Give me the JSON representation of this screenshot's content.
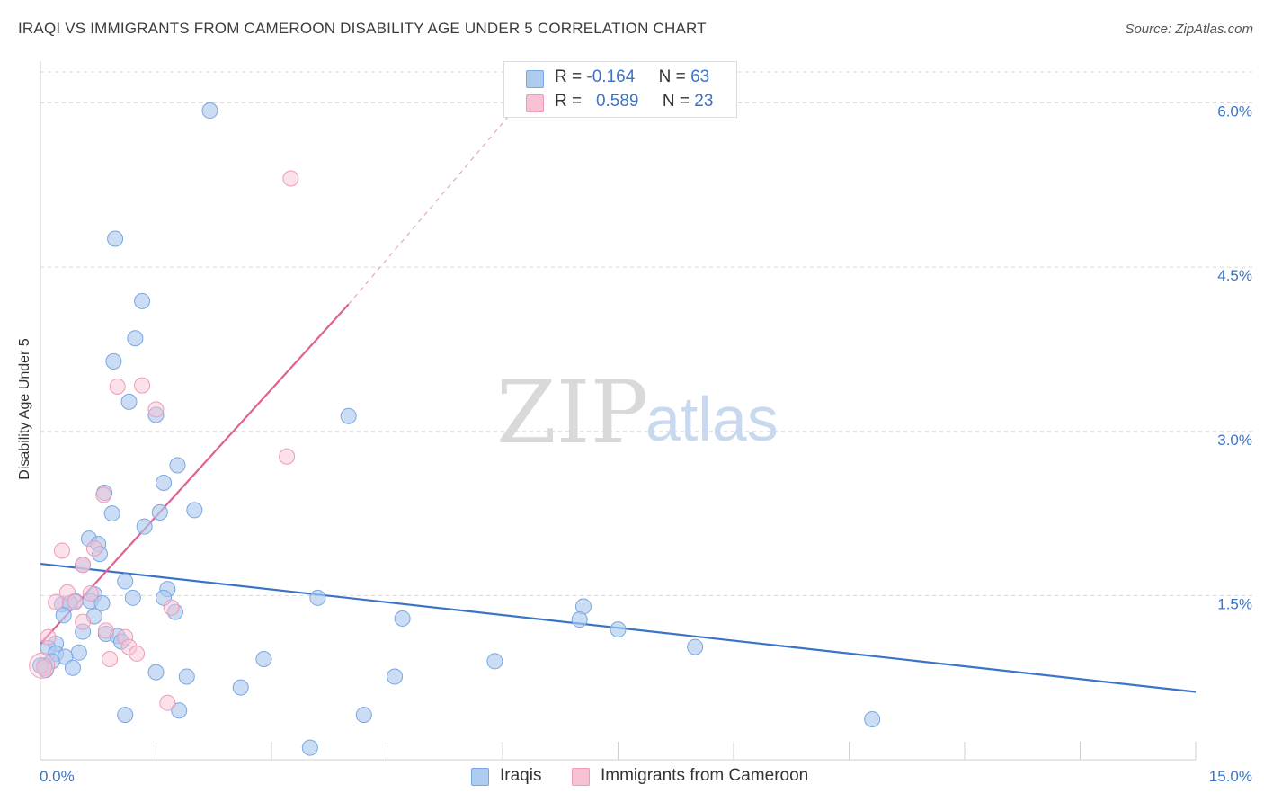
{
  "title": "IRAQI VS IMMIGRANTS FROM CAMEROON DISABILITY AGE UNDER 5 CORRELATION CHART",
  "source": "Source: ZipAtlas.com",
  "watermark": {
    "zip": "ZIP",
    "atlas": "atlas"
  },
  "colors": {
    "blue": "#3b74c6",
    "blue_fill": "#aecbf0",
    "blue_stroke": "#7aa6e0",
    "pink": "#e0608f",
    "pink_fill": "#f7c3d4",
    "pink_stroke": "#ef9ab8",
    "grid": "#d8d8d8"
  },
  "legend": {
    "rows": [
      {
        "r_label": "R =",
        "r_value": "-0.164",
        "n_label": "N =",
        "n_value": "63"
      },
      {
        "r_label": "R =",
        "r_value": "0.589",
        "n_label": "N =",
        "n_value": "23"
      }
    ]
  },
  "bottom_legend": [
    "Iraqis",
    "Immigrants from Cameroon"
  ],
  "chart_data": {
    "type": "scatter",
    "title": "IRAQI VS IMMIGRANTS FROM CAMEROON DISABILITY AGE UNDER 5 CORRELATION CHART",
    "xlabel": "",
    "ylabel": "Disability Age Under 5",
    "xlim": [
      0,
      15
    ],
    "ylim": [
      0,
      6.3
    ],
    "x_tick_labels": [
      "0.0%",
      "15.0%"
    ],
    "y_ticks": [
      1.5,
      3.0,
      4.5,
      6.0
    ],
    "y_tick_labels": [
      "1.5%",
      "3.0%",
      "4.5%",
      "6.0%"
    ],
    "series": [
      {
        "name": "Iraqis",
        "points": [
          [
            2.2,
            5.93
          ],
          [
            0.97,
            4.76
          ],
          [
            1.32,
            4.19
          ],
          [
            1.23,
            3.85
          ],
          [
            0.95,
            3.64
          ],
          [
            1.15,
            3.27
          ],
          [
            1.5,
            3.15
          ],
          [
            4.0,
            3.14
          ],
          [
            1.78,
            2.69
          ],
          [
            1.6,
            2.53
          ],
          [
            0.83,
            2.44
          ],
          [
            0.93,
            2.25
          ],
          [
            2.0,
            2.28
          ],
          [
            1.55,
            2.26
          ],
          [
            1.35,
            2.13
          ],
          [
            0.63,
            2.02
          ],
          [
            0.75,
            1.97
          ],
          [
            0.77,
            1.88
          ],
          [
            0.55,
            1.78
          ],
          [
            1.1,
            1.63
          ],
          [
            1.65,
            1.56
          ],
          [
            0.7,
            1.51
          ],
          [
            0.65,
            1.45
          ],
          [
            0.45,
            1.45
          ],
          [
            0.8,
            1.43
          ],
          [
            0.28,
            1.42
          ],
          [
            0.38,
            1.43
          ],
          [
            1.2,
            1.48
          ],
          [
            1.6,
            1.48
          ],
          [
            3.6,
            1.48
          ],
          [
            1.75,
            1.35
          ],
          [
            0.3,
            1.32
          ],
          [
            0.7,
            1.31
          ],
          [
            0.55,
            1.17
          ],
          [
            7.05,
            1.4
          ],
          [
            4.7,
            1.29
          ],
          [
            7.0,
            1.28
          ],
          [
            7.5,
            1.19
          ],
          [
            0.85,
            1.15
          ],
          [
            1.0,
            1.13
          ],
          [
            1.05,
            1.08
          ],
          [
            0.2,
            1.06
          ],
          [
            0.1,
            1.02
          ],
          [
            0.2,
            0.97
          ],
          [
            0.5,
            0.98
          ],
          [
            0.32,
            0.94
          ],
          [
            0.15,
            0.9
          ],
          [
            0.05,
            0.86
          ],
          [
            0.07,
            0.82
          ],
          [
            8.5,
            1.03
          ],
          [
            0.42,
            0.84
          ],
          [
            2.9,
            0.92
          ],
          [
            5.9,
            0.9
          ],
          [
            1.5,
            0.8
          ],
          [
            1.9,
            0.76
          ],
          [
            4.6,
            0.76
          ],
          [
            2.6,
            0.66
          ],
          [
            1.8,
            0.45
          ],
          [
            1.1,
            0.41
          ],
          [
            4.2,
            0.41
          ],
          [
            10.8,
            0.37
          ],
          [
            3.5,
            0.11
          ],
          [
            0.0,
            0.86
          ]
        ]
      },
      {
        "name": "Immigrants from Cameroon",
        "points": [
          [
            3.25,
            5.31
          ],
          [
            1.0,
            3.41
          ],
          [
            1.32,
            3.42
          ],
          [
            1.5,
            3.2
          ],
          [
            3.2,
            2.77
          ],
          [
            0.82,
            2.42
          ],
          [
            0.28,
            1.91
          ],
          [
            0.7,
            1.93
          ],
          [
            0.55,
            1.78
          ],
          [
            0.35,
            1.53
          ],
          [
            0.65,
            1.52
          ],
          [
            0.45,
            1.44
          ],
          [
            0.2,
            1.44
          ],
          [
            1.7,
            1.39
          ],
          [
            0.55,
            1.26
          ],
          [
            0.85,
            1.18
          ],
          [
            1.1,
            1.12
          ],
          [
            1.15,
            1.03
          ],
          [
            1.25,
            0.97
          ],
          [
            0.9,
            0.92
          ],
          [
            0.1,
            1.12
          ],
          [
            0.05,
            0.84
          ],
          [
            1.65,
            0.52
          ]
        ]
      }
    ],
    "trend_lines": [
      {
        "series": "Iraqis",
        "x": [
          0,
          15
        ],
        "y": [
          1.79,
          0.62
        ],
        "r": -0.164,
        "n": 63
      },
      {
        "series": "Immigrants from Cameroon",
        "x": [
          0,
          4.0
        ],
        "y": [
          1.06,
          4.16
        ],
        "extension_x": [
          4.0,
          6.2
        ],
        "extension_y": [
          4.16,
          5.98
        ],
        "r": 0.589,
        "n": 23
      }
    ]
  }
}
